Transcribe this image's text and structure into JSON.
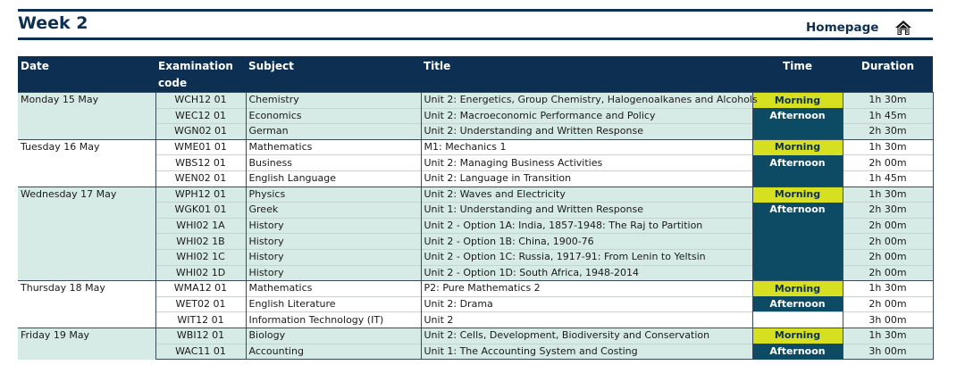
{
  "header": {
    "title": "Week 2",
    "homepage_label": "Homepage",
    "home_icon": "house-icon"
  },
  "columns": [
    "Date",
    "Examination code",
    "Subject",
    "Title",
    "Time",
    "Duration"
  ],
  "rows": [
    {
      "date": "Monday 15 May",
      "code": "WCH12 01",
      "subject": "Chemistry",
      "title": "Unit 2: Energetics, Group Chemistry, Halogenoalkanes and Alcohols",
      "time": "Morning",
      "duration": "1h 30m"
    },
    {
      "date": "",
      "code": "WEC12 01",
      "subject": "Economics",
      "title": "Unit 2: Macroeconomic Performance and Policy",
      "time": "Afternoon",
      "duration": "1h 45m"
    },
    {
      "date": "",
      "code": "WGN02 01",
      "subject": "German",
      "title": "Unit 2: Understanding and Written Response",
      "time": "",
      "duration": "2h 30m"
    },
    {
      "date": "Tuesday 16 May",
      "code": "WME01 01",
      "subject": "Mathematics",
      "title": "M1: Mechanics 1",
      "time": "Morning",
      "duration": "1h 30m"
    },
    {
      "date": "",
      "code": "WBS12 01",
      "subject": "Business",
      "title": "Unit 2: Managing Business Activities",
      "time": "Afternoon",
      "duration": "2h 00m"
    },
    {
      "date": "",
      "code": "WEN02 01",
      "subject": "English Language",
      "title": "Unit 2: Language in Transition",
      "time": "",
      "duration": "1h 45m"
    },
    {
      "date": "Wednesday 17 May",
      "code": "WPH12 01",
      "subject": "Physics",
      "title": "Unit 2: Waves and Electricity",
      "time": "Morning",
      "duration": "1h 30m"
    },
    {
      "date": "",
      "code": "WGK01 01",
      "subject": "Greek",
      "title": "Unit 1: Understanding and Written Response",
      "time": "Afternoon",
      "duration": "2h 30m"
    },
    {
      "date": "",
      "code": "WHI02 1A",
      "subject": "History",
      "title": "Unit 2 - Option 1A: India, 1857-1948: The Raj to Partition",
      "time": "",
      "duration": "2h 00m"
    },
    {
      "date": "",
      "code": "WHI02 1B",
      "subject": "History",
      "title": "Unit 2 - Option 1B: China, 1900-76",
      "time": "",
      "duration": "2h 00m"
    },
    {
      "date": "",
      "code": "WHI02 1C",
      "subject": "History",
      "title": "Unit 2 - Option 1C: Russia, 1917-91: From Lenin to Yeltsin",
      "time": "",
      "duration": "2h 00m"
    },
    {
      "date": "",
      "code": "WHI02 1D",
      "subject": "History",
      "title": "Unit 2 - Option 1D: South Africa, 1948-2014",
      "time": "",
      "duration": "2h 00m"
    },
    {
      "date": "Thursday 18 May",
      "code": "WMA12 01",
      "subject": "Mathematics",
      "title": "P2: Pure Mathematics 2",
      "time": "Morning",
      "duration": "1h 30m"
    },
    {
      "date": "",
      "code": "WET02 01",
      "subject": "English Literature",
      "title": "Unit 2: Drama",
      "time": "Afternoon",
      "duration": "2h 00m"
    },
    {
      "date": "",
      "code": "WIT12 01",
      "subject": "Information Technology (IT)",
      "title": "Unit 2",
      "time": "",
      "duration": "3h 00m"
    },
    {
      "date": "Friday 19 May",
      "code": "WBI12 01",
      "subject": "Biology",
      "title": "Unit 2: Cells, Development, Biodiversity and Conservation",
      "time": "Morning",
      "duration": "1h 30m"
    },
    {
      "date": "",
      "code": "WAC11 01",
      "subject": "Accounting",
      "title": "Unit 1: The Accounting System and Costing",
      "time": "Afternoon",
      "duration": "3h 00m"
    }
  ],
  "colors": {
    "navy": "#0d2f52",
    "row_fill": "#d7ebe6",
    "morning": "#d6e021",
    "afternoon": "#0d4a63"
  }
}
